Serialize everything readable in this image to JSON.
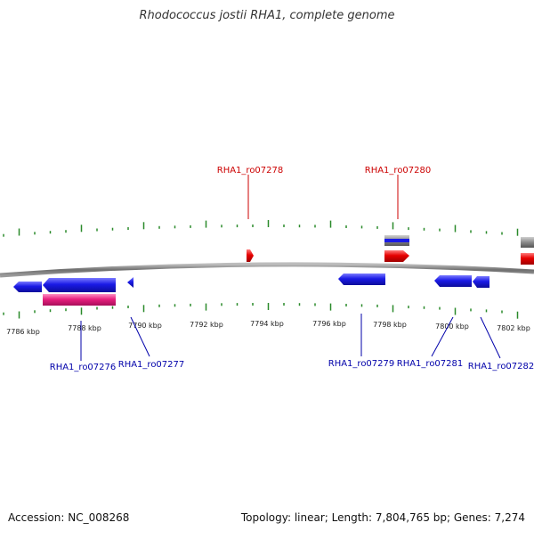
{
  "title": "Rhodococcus jostii RHA1, complete genome",
  "footer": {
    "accession": "Accession: NC_008268",
    "summary": "Topology: linear; Length: 7,804,765 bp; Genes: 7,274"
  },
  "axis": {
    "unit": "kbp",
    "tick_labels": [
      "7786 kbp",
      "7788 kbp",
      "7790 kbp",
      "7792 kbp",
      "7794 kbp",
      "7796 kbp",
      "7798 kbp",
      "7800 kbp",
      "7802 kbp"
    ]
  },
  "colors": {
    "forward_gene": "#e60000",
    "reverse_gene": "#1a1ae6",
    "forward_label": "#cc0000",
    "reverse_label": "#0000aa",
    "cds_pink": "#e8207f",
    "grey_feature": "#808080",
    "backbone": "#777777",
    "ticks": "#2a8a2a"
  },
  "labels": {
    "forward": [
      "RHA1_ro07278",
      "RHA1_ro07280"
    ],
    "reverse": [
      "RHA1_ro07276",
      "RHA1_ro07277",
      "RHA1_ro07279",
      "RHA1_ro07281",
      "RHA1_ro07282"
    ]
  }
}
